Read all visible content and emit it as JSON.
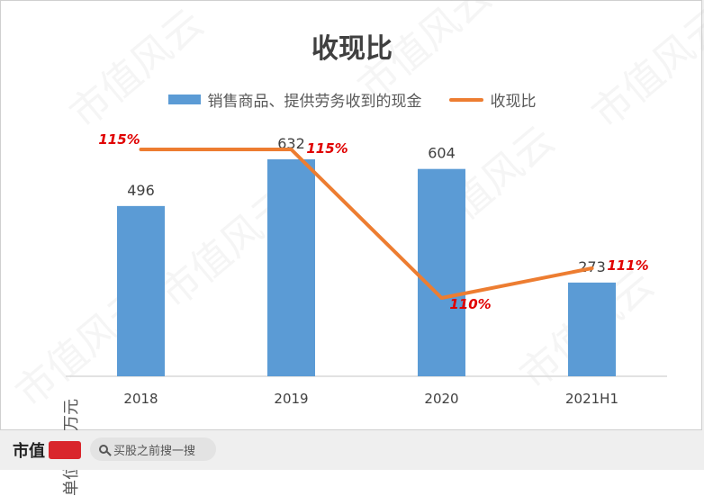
{
  "chart_data": {
    "type": "bar",
    "title": "收现比",
    "ylabel": "单位：百万元",
    "categories": [
      "2018",
      "2019",
      "2020",
      "2021H1"
    ],
    "series": [
      {
        "name": "销售商品、提供劳务收到的现金",
        "kind": "bar",
        "axis": "left",
        "values": [
          496,
          632,
          604,
          273
        ],
        "labels": [
          "496",
          "632",
          "604",
          "273"
        ]
      },
      {
        "name": "收现比",
        "kind": "line",
        "axis": "right",
        "values": [
          115,
          115,
          110,
          111
        ],
        "labels": [
          "115%",
          "115%",
          "110%",
          "111%"
        ]
      }
    ],
    "ylim": [
      0,
      700
    ],
    "y2lim": [
      100,
      120
    ],
    "legend": "top",
    "grid": false,
    "colors": {
      "bar": "#5b9bd5",
      "line": "#ed7d31",
      "line_label": "#e00000"
    }
  },
  "footer": {
    "brand": "市值",
    "search_placeholder": "买股之前搜一搜"
  },
  "watermark": "市值风云"
}
